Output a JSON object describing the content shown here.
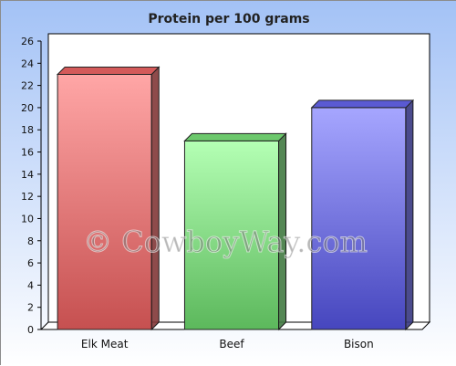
{
  "chart_data": {
    "type": "bar",
    "title": "Protein per 100 grams",
    "categories": [
      "Elk Meat",
      "Beef",
      "Bison"
    ],
    "values": [
      23,
      17,
      20
    ],
    "colors": [
      "#d45a5a",
      "#6cc86c",
      "#5a5ad2"
    ],
    "ylim": [
      0,
      26
    ],
    "yticks": [
      "0",
      "2",
      "4",
      "6",
      "8",
      "10",
      "12",
      "14",
      "16",
      "18",
      "20",
      "22",
      "24",
      "26"
    ],
    "xlabel": "",
    "ylabel": "",
    "grid": false,
    "legend": "none"
  },
  "watermark": "© CowboyWay.com"
}
